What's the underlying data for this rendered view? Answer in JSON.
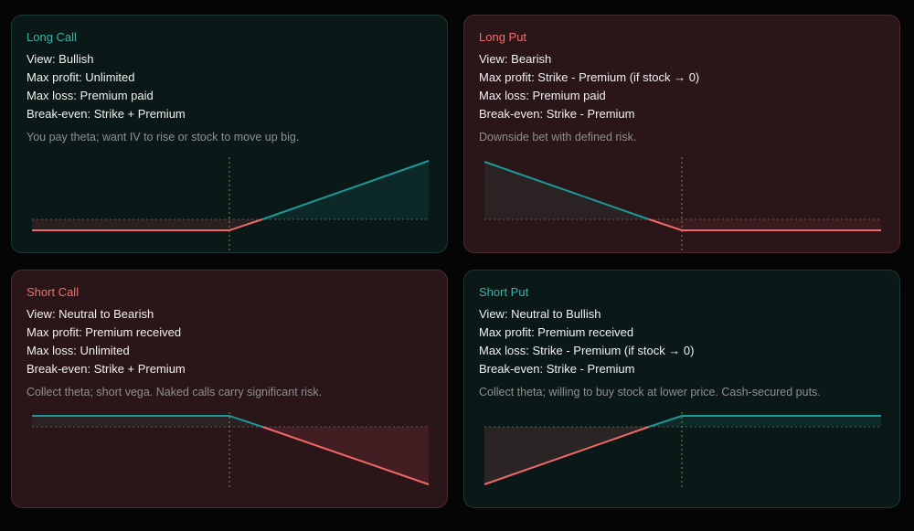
{
  "cards": [
    {
      "id": "long-call",
      "title": "Long Call",
      "view": "View: Bullish",
      "max_profit": "Max profit: Unlimited",
      "max_loss": "Max loss: Premium paid",
      "break_even": "Break-even: Strike + Premium",
      "note": "You pay theta; want IV to rise or stock to move up big.",
      "theme": "green"
    },
    {
      "id": "long-put",
      "title": "Long Put",
      "view": "View: Bearish",
      "max_profit": "Max profit: Strike - Premium (if stock → 0)",
      "max_loss": "Max loss: Premium paid",
      "break_even": "Break-even: Strike - Premium",
      "note": "Downside bet with defined risk.",
      "theme": "red"
    },
    {
      "id": "short-call",
      "title": "Short Call",
      "view": "View: Neutral to Bearish",
      "max_profit": "Max profit: Premium received",
      "max_loss": "Max loss: Unlimited",
      "break_even": "Break-even: Strike + Premium",
      "note": "Collect theta; short vega. Naked calls carry significant risk.",
      "theme": "red"
    },
    {
      "id": "short-put",
      "title": "Short Put",
      "view": "View: Neutral to Bullish",
      "max_profit": "Max profit: Premium received",
      "max_loss": "Max loss: Strike - Premium (if stock → 0)",
      "break_even": "Break-even: Strike - Premium",
      "note": "Collect theta; willing to buy stock at lower price. Cash-secured puts.",
      "theme": "green"
    }
  ],
  "colors": {
    "profit_line": "#1c9896",
    "loss_line": "#f06767",
    "strike_marker": "#8a8a3a",
    "zero_line": "#5a5a5a"
  }
}
